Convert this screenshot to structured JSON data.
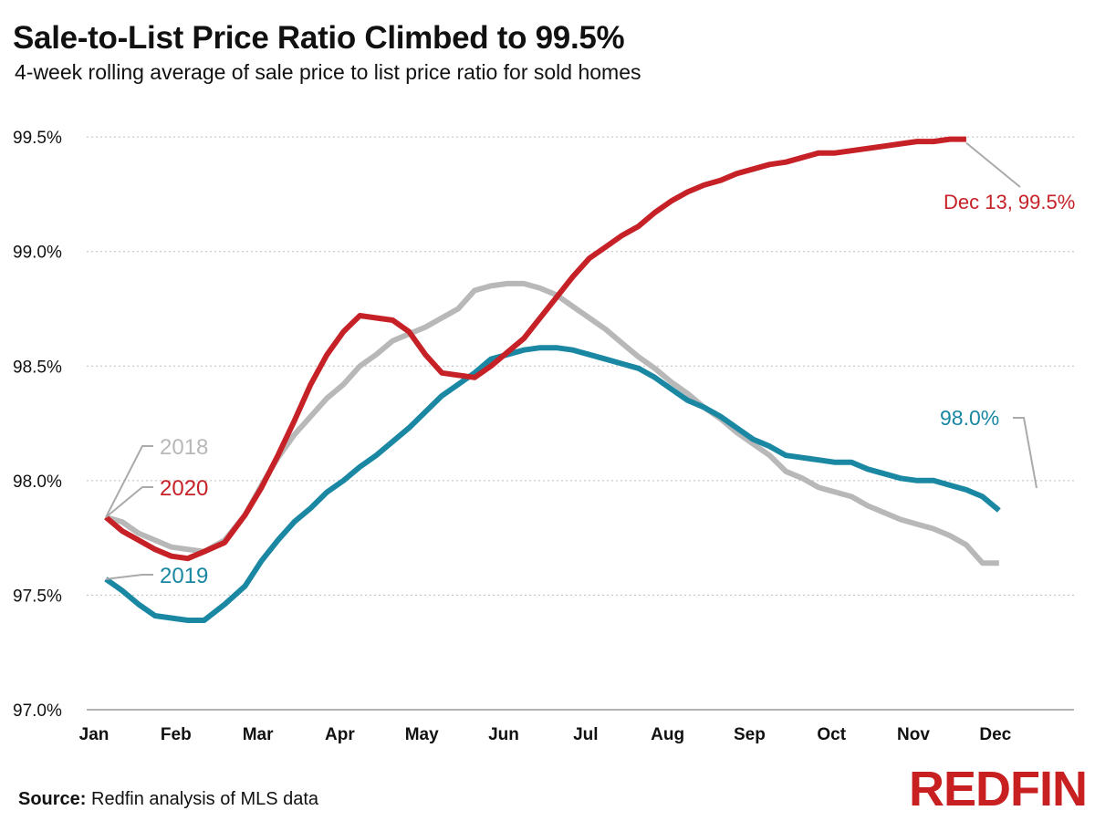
{
  "header": {
    "title": "Sale-to-List Price Ratio Climbed to 99.5%",
    "subtitle": "4-week rolling average of sale price to list price ratio for sold homes"
  },
  "footer": {
    "source_label": "Source:",
    "source_text": "Redfin analysis of MLS data",
    "logo_text": "REDFIN"
  },
  "colors": {
    "2018": "#b8b8b8",
    "2019": "#1a87a3",
    "2020": "#c62127",
    "grid": "#bdbdbd",
    "axis": "#888888"
  },
  "chart_data": {
    "type": "line",
    "title": "Sale-to-List Price Ratio Climbed to 99.5%",
    "subtitle": "4-week rolling average of sale price to list price ratio for sold homes",
    "xlabel": "",
    "ylabel": "",
    "x_ticks": [
      "Jan",
      "Feb",
      "Mar",
      "Apr",
      "May",
      "Jun",
      "Jul",
      "Aug",
      "Sep",
      "Oct",
      "Nov",
      "Dec"
    ],
    "y_ticks": [
      "97.0%",
      "97.5%",
      "98.0%",
      "98.5%",
      "99.0%",
      "99.5%"
    ],
    "ylim": [
      97.0,
      99.6
    ],
    "xlim": [
      0,
      12
    ],
    "grid": true,
    "series": [
      {
        "name": "2018",
        "x": [
          0.1,
          0.3,
          0.5,
          0.7,
          0.9,
          1.1,
          1.3,
          1.55,
          1.8,
          2.0,
          2.2,
          2.4,
          2.6,
          2.8,
          3.0,
          3.2,
          3.4,
          3.6,
          3.8,
          4.0,
          4.2,
          4.4,
          4.6,
          4.8,
          5.0,
          5.2,
          5.4,
          5.6,
          5.8,
          6.0,
          6.2,
          6.4,
          6.6,
          6.8,
          7.0,
          7.2,
          7.4,
          7.6,
          7.8,
          8.0,
          8.2,
          8.4,
          8.6,
          8.8,
          9.0,
          9.2,
          9.4,
          9.6,
          9.8,
          10.0,
          10.2,
          10.4,
          10.6,
          10.8,
          11.0,
          11.2,
          11.4,
          11.6,
          11.8
        ],
        "values": [
          97.84,
          97.82,
          97.77,
          97.74,
          97.71,
          97.7,
          97.69,
          97.74,
          97.85,
          97.98,
          98.1,
          98.2,
          98.28,
          98.36,
          98.42,
          98.5,
          98.55,
          98.61,
          98.64,
          98.67,
          98.71,
          98.75,
          98.83,
          98.85,
          98.86,
          98.86,
          98.84,
          98.81,
          98.76,
          98.71,
          98.66,
          98.6,
          98.54,
          98.49,
          98.43,
          98.38,
          98.32,
          98.27,
          98.21,
          98.16,
          98.11,
          98.04,
          98.01,
          97.97,
          97.95,
          97.93,
          97.89,
          97.86,
          97.83,
          97.81,
          97.79,
          97.76,
          97.72,
          97.64,
          97.64,
          97.64,
          97.64,
          97.64,
          97.64
        ],
        "label": "2018"
      },
      {
        "name": "2019",
        "x": [
          0.1,
          0.3,
          0.5,
          0.7,
          0.9,
          1.1,
          1.3,
          1.55,
          1.8,
          2.0,
          2.2,
          2.4,
          2.6,
          2.8,
          3.0,
          3.2,
          3.4,
          3.6,
          3.8,
          4.0,
          4.2,
          4.4,
          4.6,
          4.8,
          5.0,
          5.2,
          5.4,
          5.6,
          5.8,
          6.0,
          6.2,
          6.4,
          6.6,
          6.8,
          7.0,
          7.2,
          7.4,
          7.6,
          7.8,
          8.0,
          8.2,
          8.4,
          8.6,
          8.8,
          9.0,
          9.2,
          9.4,
          9.6,
          9.8,
          10.0,
          10.2,
          10.4,
          10.6,
          10.8,
          11.0,
          11.2,
          11.4,
          11.6,
          11.8
        ],
        "values": [
          97.57,
          97.52,
          97.46,
          97.41,
          97.4,
          97.39,
          97.39,
          97.46,
          97.54,
          97.65,
          97.74,
          97.82,
          97.88,
          97.95,
          98.0,
          98.06,
          98.11,
          98.17,
          98.23,
          98.3,
          98.37,
          98.42,
          98.47,
          98.53,
          98.55,
          98.57,
          98.58,
          98.58,
          98.57,
          98.55,
          98.53,
          98.51,
          98.49,
          98.45,
          98.4,
          98.35,
          98.32,
          98.28,
          98.23,
          98.18,
          98.15,
          98.11,
          98.1,
          98.09,
          98.08,
          98.08,
          98.05,
          98.03,
          98.01,
          98.0,
          98.0,
          97.98,
          97.96,
          97.93,
          97.87,
          97.87,
          97.87,
          97.87,
          97.87
        ],
        "label": "2019"
      },
      {
        "name": "2020",
        "x": [
          0.1,
          0.3,
          0.5,
          0.7,
          0.9,
          1.1,
          1.3,
          1.55,
          1.8,
          2.0,
          2.2,
          2.4,
          2.6,
          2.8,
          3.0,
          3.2,
          3.4,
          3.6,
          3.8,
          4.0,
          4.2,
          4.4,
          4.6,
          4.8,
          5.0,
          5.2,
          5.4,
          5.6,
          5.8,
          6.0,
          6.2,
          6.4,
          6.6,
          6.8,
          7.0,
          7.2,
          7.4,
          7.6,
          7.8,
          8.0,
          8.2,
          8.4,
          8.6,
          8.8,
          9.0,
          9.2,
          9.4,
          9.6,
          9.8,
          10.0,
          10.2,
          10.4,
          10.6
        ],
        "values": [
          97.84,
          97.78,
          97.74,
          97.7,
          97.67,
          97.66,
          97.69,
          97.73,
          97.85,
          97.97,
          98.11,
          98.26,
          98.42,
          98.55,
          98.65,
          98.72,
          98.71,
          98.7,
          98.65,
          98.55,
          98.47,
          98.46,
          98.45,
          98.5,
          98.56,
          98.62,
          98.71,
          98.8,
          98.89,
          98.97,
          99.02,
          99.07,
          99.11,
          99.17,
          99.22,
          99.26,
          99.29,
          99.31,
          99.34,
          99.36,
          99.38,
          99.39,
          99.41,
          99.43,
          99.43,
          99.44,
          99.45,
          99.46,
          99.47,
          99.48,
          99.48,
          99.49,
          99.49
        ],
        "label": "2020"
      }
    ],
    "annotations": [
      {
        "text": "Dec 13, 99.5%",
        "series": "2020"
      },
      {
        "text": "98.0%",
        "series": "2019"
      }
    ]
  }
}
